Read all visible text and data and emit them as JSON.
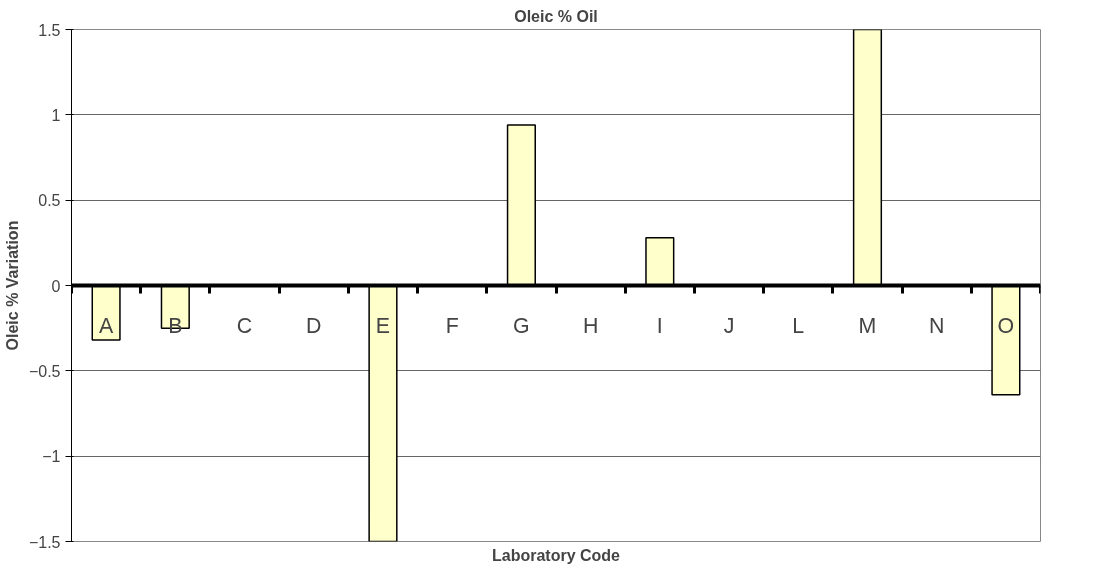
{
  "chart_data": {
    "type": "bar",
    "title": "Oleic % Oil",
    "xlabel": "Laboratory Code",
    "ylabel": "Oleic % Variation",
    "categories": [
      "A",
      "B",
      "C",
      "D",
      "E",
      "F",
      "G",
      "H",
      "I",
      "J",
      "L",
      "M",
      "N",
      "O"
    ],
    "values": [
      -0.32,
      -0.25,
      0,
      0,
      -1.5,
      0,
      0.94,
      0,
      0.28,
      0,
      0,
      1.5,
      0,
      -0.64
    ],
    "color": "#ffffcc",
    "ylim": [
      -1.5,
      1.5
    ],
    "yticks": [
      -1.5,
      -1,
      -0.5,
      0,
      0.5,
      1,
      1.5
    ],
    "grid": "y"
  }
}
